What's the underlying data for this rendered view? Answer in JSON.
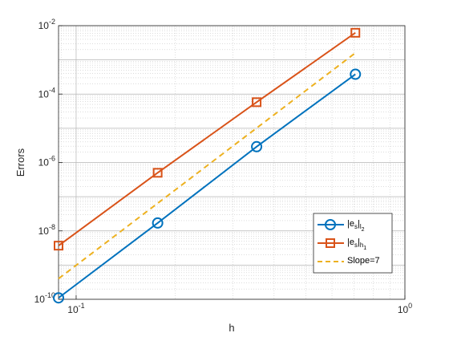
{
  "chart_data": {
    "type": "line",
    "xlabel": "h",
    "ylabel": "Errors",
    "xscale": "log",
    "yscale": "log",
    "xlim": [
      0.0884,
      1
    ],
    "ylim": [
      1e-10,
      0.01
    ],
    "grid": true,
    "minor_grid": true,
    "legend_position": "lower-right",
    "x_ticks": [
      {
        "value": 0.1,
        "base": "10",
        "exp": "-1"
      },
      {
        "value": 1,
        "base": "10",
        "exp": "0"
      }
    ],
    "y_ticks": [
      {
        "value": 1e-10,
        "base": "10",
        "exp": "-10"
      },
      {
        "value": 1e-08,
        "base": "10",
        "exp": "-8"
      },
      {
        "value": 1e-06,
        "base": "10",
        "exp": "-6"
      },
      {
        "value": 0.0001,
        "base": "10",
        "exp": "-4"
      },
      {
        "value": 0.01,
        "base": "10",
        "exp": "-2"
      }
    ],
    "series": [
      {
        "legend": {
          "prefix": "|e",
          "sub1": "s",
          "mid": "|",
          "sub2": "l",
          "sub3": "2"
        },
        "color": "#0072BD",
        "marker": "circle",
        "dash": false,
        "x": [
          0.0884,
          0.177,
          0.354,
          0.707
        ],
        "y": [
          1.1e-10,
          1.7e-08,
          2.9e-06,
          0.00038
        ]
      },
      {
        "legend": {
          "prefix": "|e",
          "sub1": "s",
          "mid": "|",
          "sub2": "h",
          "sub3": "1"
        },
        "color": "#D95319",
        "marker": "square",
        "dash": false,
        "x": [
          0.0884,
          0.177,
          0.354,
          0.707
        ],
        "y": [
          3.7e-09,
          5e-07,
          5.8e-05,
          0.0062
        ]
      },
      {
        "legend": {
          "prefix": "Slope=7",
          "sub1": "",
          "mid": "",
          "sub2": "",
          "sub3": ""
        },
        "color": "#EDB120",
        "marker": "none",
        "dash": true,
        "x": [
          0.0884,
          0.707
        ],
        "y": [
          4e-10,
          0.0016
        ]
      }
    ]
  }
}
